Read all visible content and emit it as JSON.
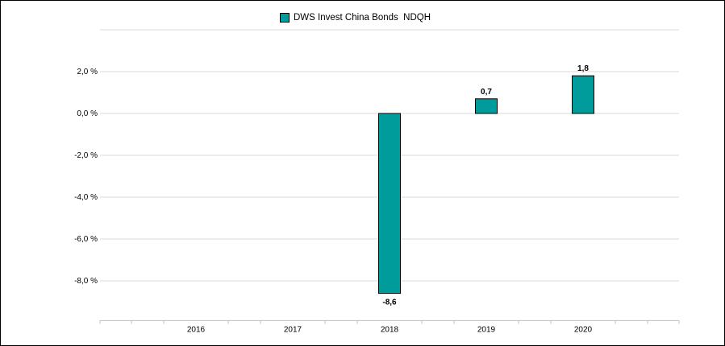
{
  "chart_data": {
    "type": "bar",
    "title": "",
    "xlabel": "",
    "ylabel": "",
    "categories": [
      "2016",
      "2017",
      "2018",
      "2019",
      "2020"
    ],
    "series": [
      {
        "name": "DWS Invest China Bonds  NDQH",
        "values": [
          null,
          null,
          -8.6,
          0.7,
          1.8
        ]
      }
    ],
    "data_labels": [
      "",
      "",
      "-8,6",
      "0,7",
      "1,8"
    ],
    "y_ticks": [
      {
        "value": 2,
        "label": "2,0 %"
      },
      {
        "value": 0,
        "label": "0,0 %"
      },
      {
        "value": -2,
        "label": "-2,0 %"
      },
      {
        "value": -4,
        "label": "-4,0 %"
      },
      {
        "value": -6,
        "label": "-6,0 %"
      },
      {
        "value": -8,
        "label": "-8,0 %"
      }
    ],
    "ylim": [
      -9.9,
      4
    ],
    "grid": true,
    "legend_position": "top-center",
    "bar_color": "#009c9c"
  }
}
